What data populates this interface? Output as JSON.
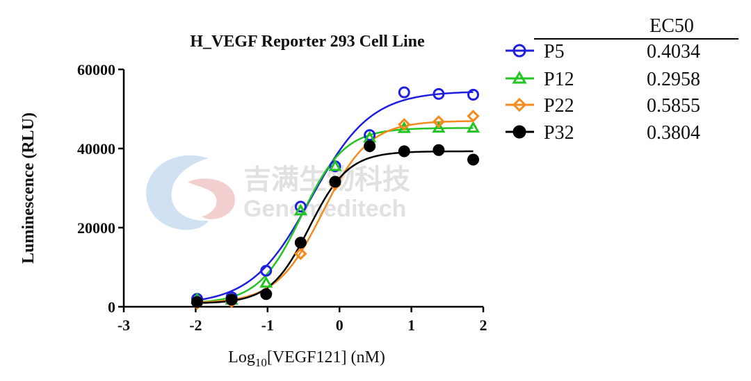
{
  "chart_data": {
    "type": "scatter",
    "title": "H_VEGF Reporter 293 Cell Line",
    "xlabel_main": "Log",
    "xlabel_sub": "10",
    "xlabel_rest": "[VEGF121] (nM)",
    "ylabel": "Luminescence (RLU)",
    "xlim": [
      -3,
      2
    ],
    "ylim": [
      0,
      60000
    ],
    "x_ticks": [
      "-3",
      "-2",
      "-1",
      "0",
      "1",
      "2"
    ],
    "y_ticks": [
      "0",
      "20000",
      "40000",
      "60000"
    ],
    "grid": false,
    "legend_placement": "right",
    "legend_header": "EC50",
    "series": [
      {
        "name": "P5",
        "color": "#1f1fe0",
        "marker": "circle-open",
        "ec50_label": "0.4034",
        "x": [
          -1.98,
          -1.5,
          -1.02,
          -0.54,
          -0.06,
          0.42,
          0.9,
          1.38,
          1.86
        ],
        "y": [
          2000,
          2400,
          9100,
          25300,
          35500,
          43400,
          54200,
          53800,
          53600
        ],
        "fit": {
          "bottom": 500,
          "top": 54500,
          "logec50": -0.394,
          "hill": 1.05
        }
      },
      {
        "name": "P12",
        "color": "#22c422",
        "marker": "triangle-open",
        "ec50_label": "0.2958",
        "x": [
          -1.98,
          -1.5,
          -1.02,
          -0.54,
          -0.06,
          0.42,
          0.9,
          1.38,
          1.86
        ],
        "y": [
          1900,
          1700,
          6000,
          24300,
          35500,
          42700,
          45100,
          45200,
          45200
        ],
        "fit": {
          "bottom": 800,
          "top": 45200,
          "logec50": -0.529,
          "hill": 1.45
        }
      },
      {
        "name": "P22",
        "color": "#f5891c",
        "marker": "diamond-open",
        "ec50_label": "0.5855",
        "x": [
          -1.98,
          -1.5,
          -1.02,
          -0.54,
          -0.06,
          0.42,
          0.9,
          1.38,
          1.86
        ],
        "y": [
          800,
          1300,
          3400,
          13400,
          30900,
          40500,
          46100,
          46800,
          48200
        ],
        "fit": {
          "bottom": 900,
          "top": 47000,
          "logec50": -0.232,
          "hill": 1.35
        }
      },
      {
        "name": "P32",
        "color": "#000000",
        "marker": "circle-filled",
        "ec50_label": "0.3804",
        "x": [
          -1.98,
          -1.5,
          -1.02,
          -0.54,
          -0.06,
          0.42,
          0.9,
          1.38,
          1.86
        ],
        "y": [
          1200,
          1800,
          3200,
          16200,
          31600,
          40600,
          39300,
          39600,
          37200
        ],
        "fit": {
          "bottom": 800,
          "top": 39300,
          "logec50": -0.42,
          "hill": 1.6
        }
      }
    ]
  },
  "watermark": {
    "text_cn": "吉满生物科技",
    "text_en": "Genemeditech",
    "colors": [
      "#a9c8e8",
      "#e8a9a9"
    ]
  }
}
